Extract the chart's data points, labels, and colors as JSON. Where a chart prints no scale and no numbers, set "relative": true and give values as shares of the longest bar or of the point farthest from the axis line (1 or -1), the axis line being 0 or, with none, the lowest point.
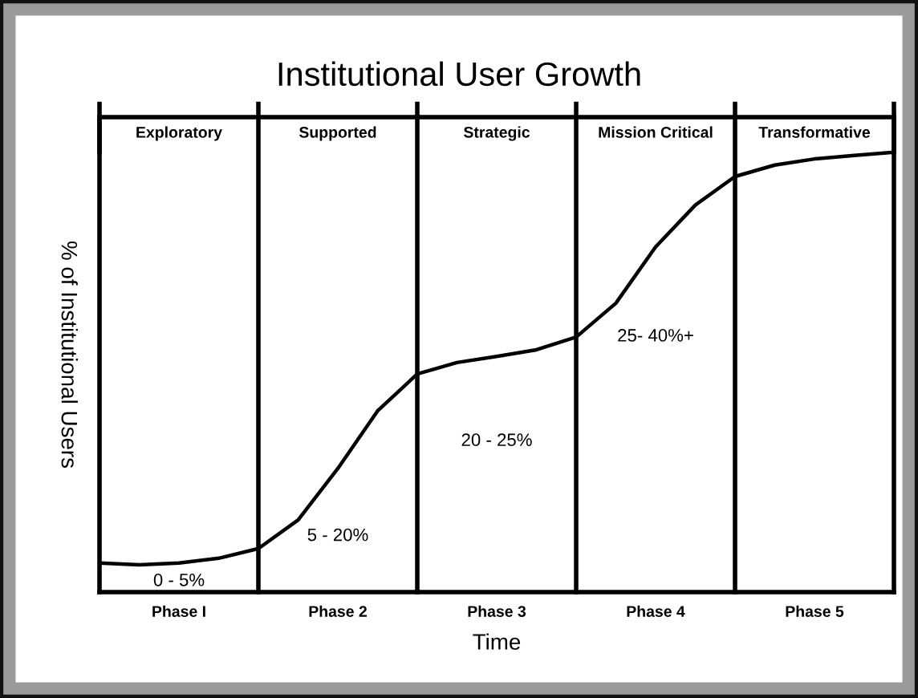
{
  "chart_data": {
    "type": "line",
    "title": "Institutional User Growth",
    "xlabel": "Time",
    "ylabel": "% of Institutional Users",
    "relative": true,
    "tick_labels": "x",
    "grid": "x",
    "legend": false,
    "marker": "none",
    "line_style": "solid",
    "categories": [
      null,
      null,
      "Phase I",
      null,
      null,
      null,
      "Phase 2",
      null,
      null,
      null,
      "Phase 3",
      null,
      null,
      null,
      "Phase 4",
      null,
      null,
      null,
      "Phase 5",
      null,
      null
    ],
    "series": [
      {
        "color": "#000000",
        "values": [
          0.066,
          0.062,
          0.066,
          0.077,
          0.099,
          0.164,
          0.281,
          0.412,
          0.496,
          0.522,
          0.536,
          0.551,
          0.58,
          0.657,
          0.785,
          0.88,
          0.945,
          0.971,
          0.985,
          0.993,
          1
        ]
      }
    ],
    "annotations": [
      "Exploratory",
      "Supported",
      "Strategic",
      "Mission Critical",
      "Transformative",
      "0 - 5%",
      "5 - 20%",
      "20 - 25%",
      "25- 40%+"
    ]
  }
}
